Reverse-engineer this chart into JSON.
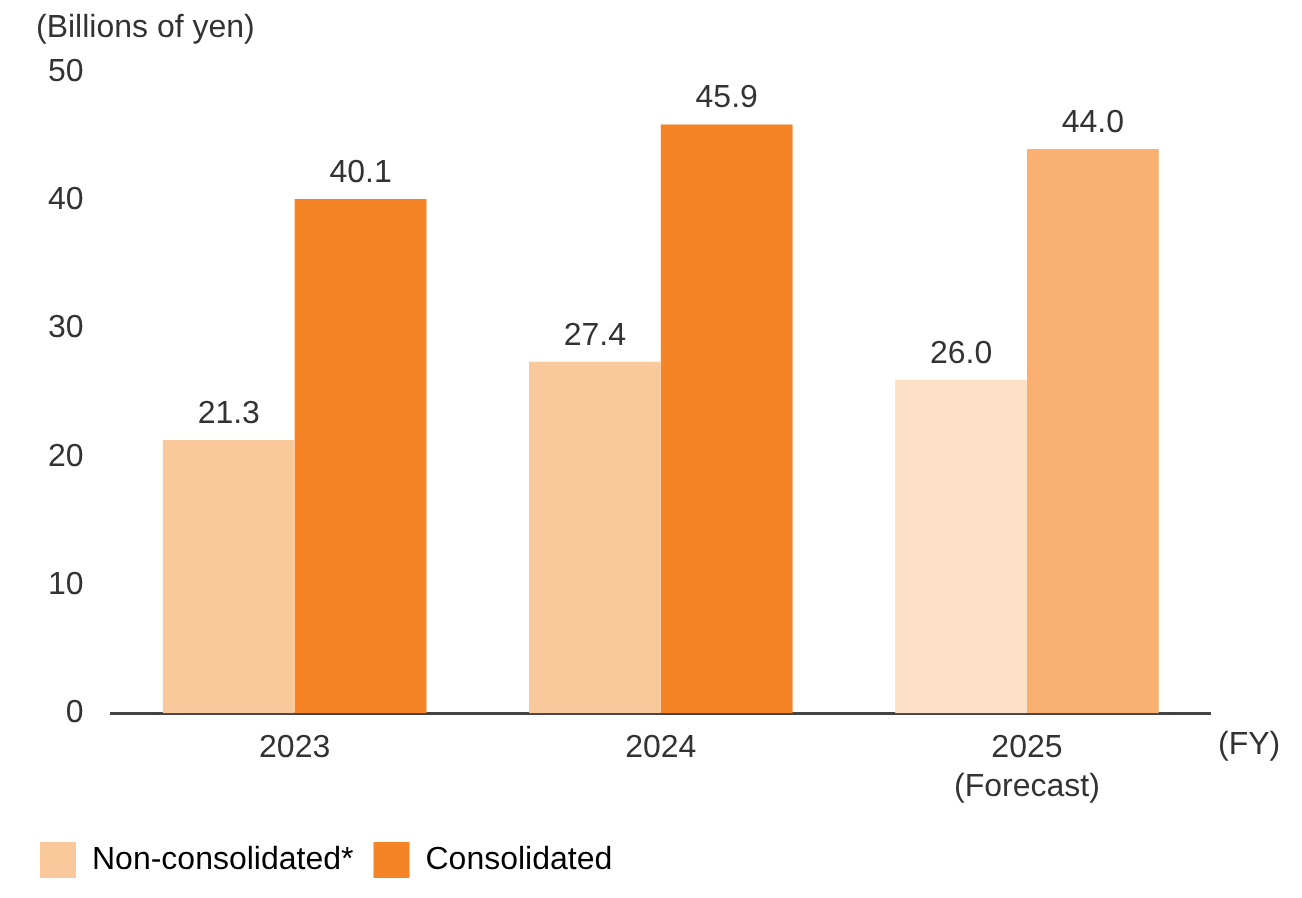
{
  "chart_data": {
    "type": "bar",
    "ylabel": "(Billions of yen)",
    "xlabel": "(FY)",
    "categories": [
      "2023",
      "2024",
      "2025\n(Forecast)"
    ],
    "series": [
      {
        "name": "Non-consolidated*",
        "color": "#f9c89b",
        "colors": [
          "#f9c89b",
          "#f9c89b",
          "#fde0c8"
        ],
        "values": [
          21.3,
          27.4,
          26.0
        ],
        "value_labels": [
          "21.3",
          "27.4",
          "26.0"
        ]
      },
      {
        "name": "Consolidated",
        "color": "#f58426",
        "colors": [
          "#f58426",
          "#f58426",
          "#f9b070"
        ],
        "values": [
          40.1,
          45.9,
          44.0
        ],
        "value_labels": [
          "40.1",
          "45.9",
          "44.0"
        ]
      }
    ],
    "ylim": [
      0,
      50
    ],
    "yticks": [
      0,
      10,
      20,
      30,
      40,
      50
    ],
    "grid": false,
    "legend": "bottom left"
  }
}
